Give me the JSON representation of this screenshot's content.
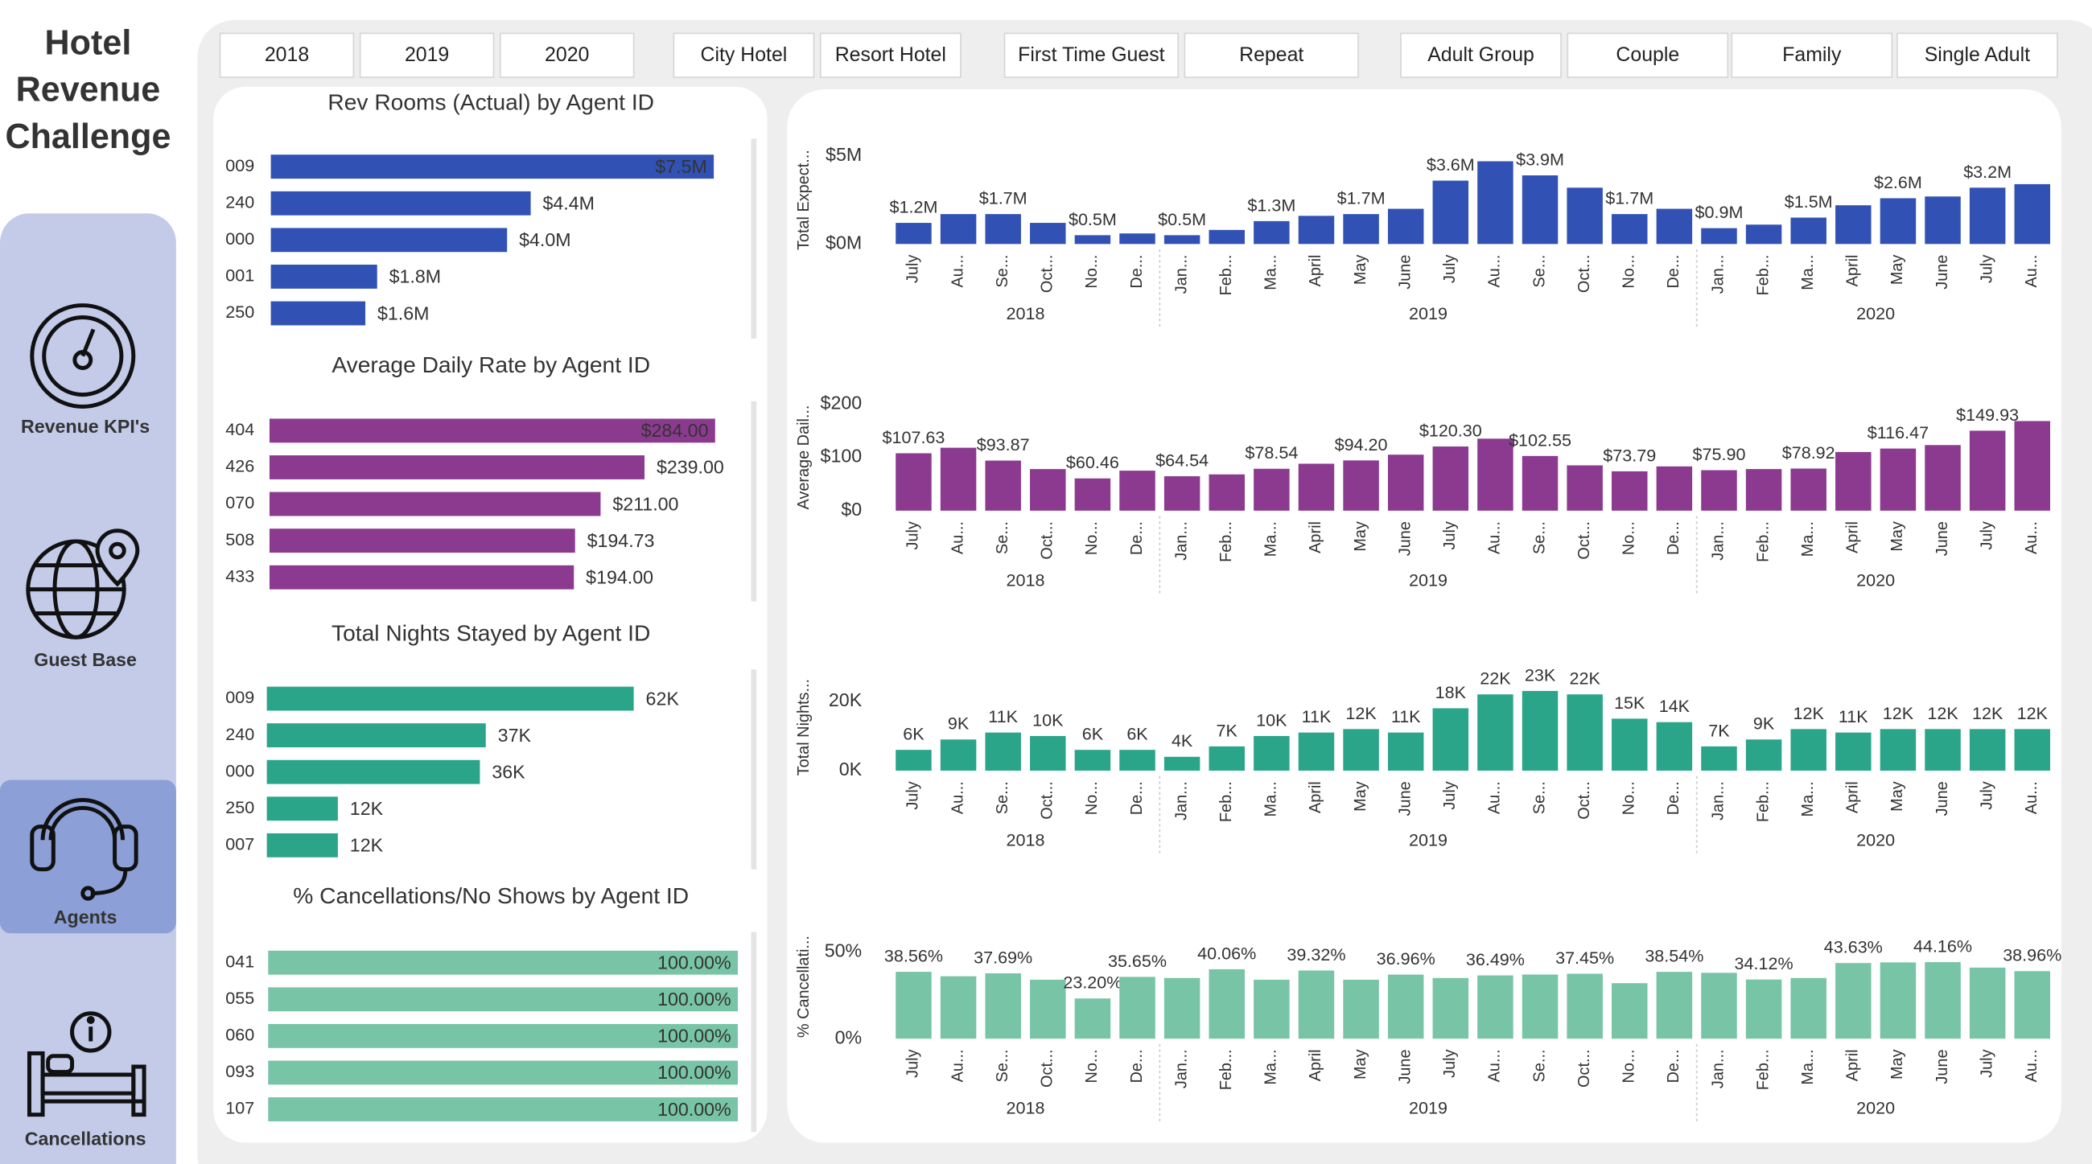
{
  "sidebar": {
    "title": [
      "Hotel",
      "Revenue",
      "Challenge"
    ],
    "nav": [
      "Revenue KPI's",
      "Guest Base",
      "Agents",
      "Cancellations"
    ],
    "selected": "Agents"
  },
  "filters": [
    [
      "2018",
      "2019",
      "2020"
    ],
    [
      "City Hotel",
      "Resort Hotel"
    ],
    [
      "First Time Guest",
      "Repeat"
    ],
    [
      "Adult Group",
      "Couple",
      "Family",
      "Single Adult"
    ]
  ],
  "chart_data": [
    {
      "type": "hbar",
      "title": "Rev Rooms (Actual) by Agent ID",
      "color": "#3152b4",
      "categories": [
        "009",
        "240",
        "000",
        "001",
        "250"
      ],
      "values": [
        7500000,
        4400000,
        4000000,
        1800000,
        1600000
      ],
      "value_labels": [
        "$7.5M",
        "$4.4M",
        "$4.0M",
        "$1.8M",
        "$1.6M"
      ]
    },
    {
      "type": "hbar",
      "title": "Average Daily Rate by Agent ID",
      "color": "#8b3a8f",
      "categories": [
        "404",
        "426",
        "070",
        "508",
        "433"
      ],
      "values": [
        284,
        239,
        211,
        194.73,
        194
      ],
      "value_labels": [
        "$284.00",
        "$239.00",
        "$211.00",
        "$194.73",
        "$194.00"
      ]
    },
    {
      "type": "hbar",
      "title": "Total Nights Stayed by Agent ID",
      "color": "#2aa58a",
      "categories": [
        "009",
        "240",
        "000",
        "250",
        "007"
      ],
      "values": [
        62000,
        37000,
        36000,
        12000,
        12000
      ],
      "value_labels": [
        "62K",
        "37K",
        "36K",
        "12K",
        "12K"
      ]
    },
    {
      "type": "hbar",
      "title": "% Cancellations/No Shows by Agent ID",
      "color": "#77c4a6",
      "categories": [
        "041",
        "055",
        "060",
        "093",
        "107"
      ],
      "values": [
        100,
        100,
        100,
        100,
        100
      ],
      "value_labels": [
        "100.00%",
        "100.00%",
        "100.00%",
        "100.00%",
        "100.00%"
      ]
    },
    {
      "type": "column",
      "y_label": "Total Expect...",
      "color": "#3152b4",
      "ylim": [
        0,
        5000000
      ],
      "yticks": [
        {
          "value": 0,
          "label": "$0M"
        },
        {
          "value": 5000000,
          "label": "$5M"
        }
      ],
      "groups": [
        {
          "label": "2018",
          "categories": [
            "July",
            "Au...",
            "Se...",
            "Oct...",
            "No...",
            "De..."
          ],
          "values": [
            1200000,
            1700000,
            1700000,
            1200000,
            500000,
            600000
          ],
          "value_labels": [
            "$1.2M",
            null,
            "$1.7M",
            null,
            "$0.5M",
            null
          ]
        },
        {
          "label": "2019",
          "categories": [
            "Jan...",
            "Feb...",
            "Ma...",
            "April",
            "May",
            "June",
            "July",
            "Au...",
            "Se...",
            "Oct...",
            "No...",
            "De..."
          ],
          "values": [
            500000,
            800000,
            1300000,
            1600000,
            1700000,
            2000000,
            3600000,
            4700000,
            3900000,
            3200000,
            1700000,
            2000000
          ],
          "value_labels": [
            "$0.5M",
            null,
            "$1.3M",
            null,
            "$1.7M",
            null,
            "$3.6M",
            null,
            "$3.9M",
            null,
            "$1.7M",
            null
          ]
        },
        {
          "label": "2020",
          "categories": [
            "Jan...",
            "Feb...",
            "Ma...",
            "April",
            "May",
            "June",
            "July",
            "Au..."
          ],
          "values": [
            900000,
            1100000,
            1500000,
            2200000,
            2600000,
            2700000,
            3200000,
            3400000
          ],
          "value_labels": [
            "$0.9M",
            null,
            "$1.5M",
            null,
            "$2.6M",
            null,
            "$3.2M",
            null
          ]
        }
      ]
    },
    {
      "type": "column",
      "y_label": "Average Dail...",
      "color": "#8b3a8f",
      "ylim": [
        0,
        200
      ],
      "yticks": [
        {
          "value": 0,
          "label": "$0"
        },
        {
          "value": 100,
          "label": "$100"
        },
        {
          "value": 200,
          "label": "$200"
        }
      ],
      "groups": [
        {
          "label": "2018",
          "categories": [
            "July",
            "Au...",
            "Se...",
            "Oct...",
            "No...",
            "De..."
          ],
          "values": [
            107.63,
            118,
            93.87,
            78,
            60.46,
            75
          ],
          "value_labels": [
            "$107.63",
            null,
            "$93.87",
            null,
            "$60.46",
            null
          ]
        },
        {
          "label": "2019",
          "categories": [
            "Jan...",
            "Feb...",
            "Ma...",
            "April",
            "May",
            "June",
            "July",
            "Au...",
            "Se...",
            "Oct...",
            "No...",
            "De..."
          ],
          "values": [
            64.54,
            68,
            78.54,
            88,
            94.2,
            105,
            120.3,
            135,
            102.55,
            85,
            73.79,
            83
          ],
          "value_labels": [
            "$64.54",
            null,
            "$78.54",
            null,
            "$94.20",
            null,
            "$120.30",
            null,
            "$102.55",
            null,
            "$73.79",
            null
          ]
        },
        {
          "label": "2020",
          "categories": [
            "Jan...",
            "Feb...",
            "Ma...",
            "April",
            "May",
            "June",
            "July",
            "Au..."
          ],
          "values": [
            75.9,
            78,
            78.92,
            110,
            116.47,
            123,
            149.93,
            168
          ],
          "value_labels": [
            "$75.90",
            null,
            "$78.92",
            null,
            "$116.47",
            null,
            "$149.93",
            null
          ]
        }
      ]
    },
    {
      "type": "column",
      "y_label": "Total Nights...",
      "color": "#2aa58a",
      "ylim": [
        0,
        25000
      ],
      "yticks": [
        {
          "value": 0,
          "label": "0K"
        },
        {
          "value": 20000,
          "label": "20K"
        }
      ],
      "groups": [
        {
          "label": "2018",
          "categories": [
            "July",
            "Au...",
            "Se...",
            "Oct...",
            "No...",
            "De..."
          ],
          "values": [
            6000,
            9000,
            11000,
            10000,
            6000,
            6000
          ],
          "value_labels": [
            "6K",
            "9K",
            "11K",
            "10K",
            "6K",
            "6K"
          ]
        },
        {
          "label": "2019",
          "categories": [
            "Jan...",
            "Feb...",
            "Ma...",
            "April",
            "May",
            "June",
            "July",
            "Au...",
            "Se...",
            "Oct...",
            "No...",
            "De..."
          ],
          "values": [
            4000,
            7000,
            10000,
            11000,
            12000,
            11000,
            18000,
            22000,
            23000,
            22000,
            15000,
            14000
          ],
          "value_labels": [
            "4K",
            "7K",
            "10K",
            "11K",
            "12K",
            "11K",
            "18K",
            "22K",
            "23K",
            "22K",
            "15K",
            "14K"
          ]
        },
        {
          "label": "2020",
          "categories": [
            "Jan...",
            "Feb...",
            "Ma...",
            "April",
            "May",
            "June",
            "July",
            "Au..."
          ],
          "values": [
            7000,
            9000,
            12000,
            11000,
            12000,
            12000,
            12000,
            12000
          ],
          "value_labels": [
            "7K",
            "9K",
            "12K",
            "11K",
            "12K",
            "12K",
            "12K",
            "12K"
          ]
        }
      ]
    },
    {
      "type": "column",
      "y_label": "% Cancellati...",
      "color": "#77c4a6",
      "ylim": [
        0,
        60
      ],
      "yticks": [
        {
          "value": 0,
          "label": "0%"
        },
        {
          "value": 50,
          "label": "50%"
        }
      ],
      "groups": [
        {
          "label": "2018",
          "categories": [
            "July",
            "Au...",
            "Se...",
            "Oct...",
            "No...",
            "De..."
          ],
          "values": [
            38.56,
            36,
            37.69,
            34,
            23.2,
            35.65
          ],
          "value_labels": [
            "38.56%",
            null,
            "37.69%",
            null,
            "23.20%",
            "35.65%"
          ]
        },
        {
          "label": "2019",
          "categories": [
            "Jan...",
            "Feb...",
            "Ma...",
            "April",
            "May",
            "June",
            "July",
            "Au...",
            "Se...",
            "Oct...",
            "No...",
            "De..."
          ],
          "values": [
            35,
            40.06,
            34,
            39.32,
            34,
            36.96,
            35,
            36.49,
            37,
            37.45,
            32,
            38.54
          ],
          "value_labels": [
            null,
            "40.06%",
            null,
            "39.32%",
            null,
            "36.96%",
            null,
            "36.49%",
            null,
            "37.45%",
            null,
            "38.54%"
          ]
        },
        {
          "label": "2020",
          "categories": [
            "Jan...",
            "Feb...",
            "Ma...",
            "April",
            "May",
            "June",
            "July",
            "Au..."
          ],
          "values": [
            38,
            34.12,
            35,
            43.63,
            44,
            44.16,
            41,
            38.96
          ],
          "value_labels": [
            null,
            "34.12%",
            null,
            "43.63%",
            null,
            "44.16%",
            null,
            "38.96%"
          ]
        }
      ]
    }
  ]
}
